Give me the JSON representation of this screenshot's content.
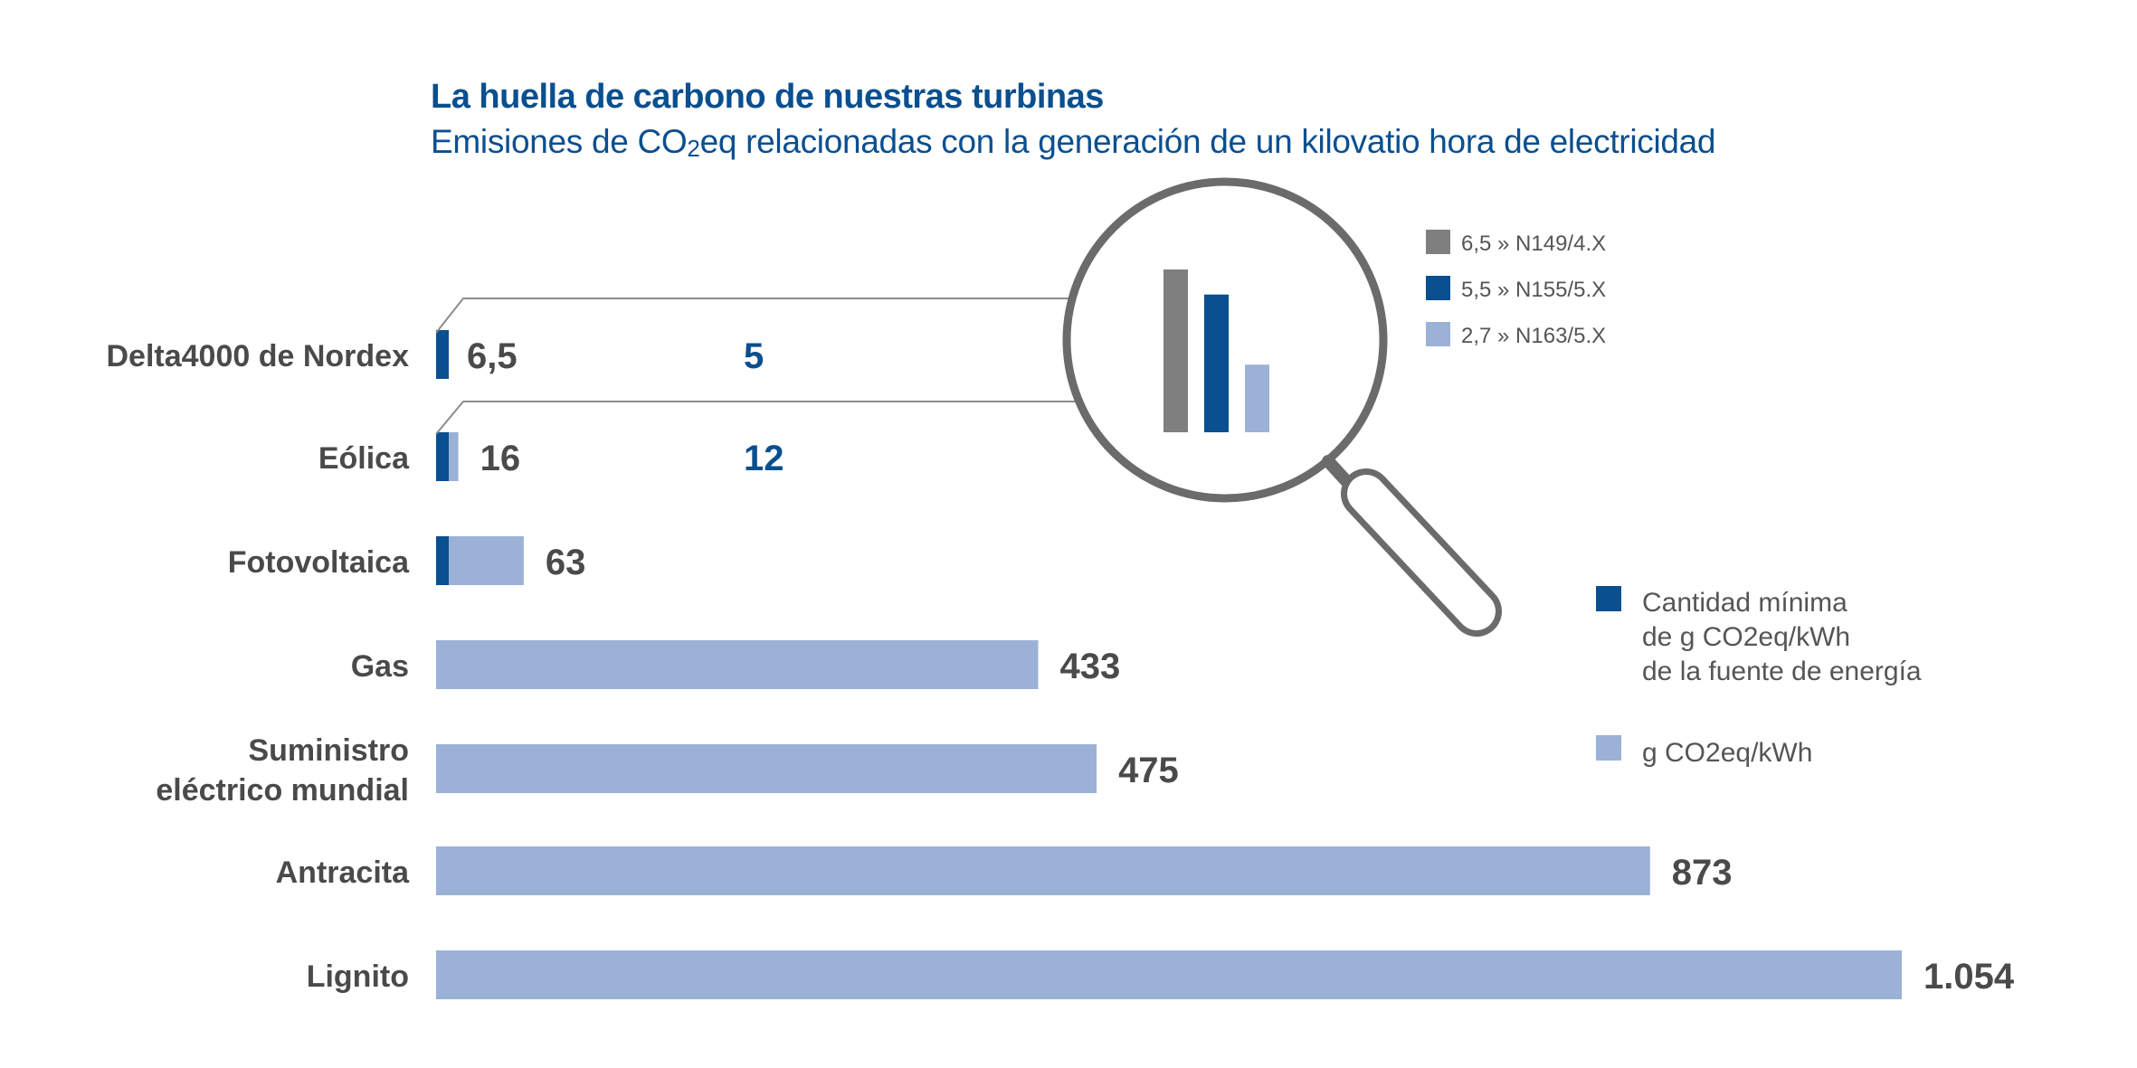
{
  "chart_data": {
    "type": "bar",
    "orientation": "horizontal",
    "title": "La huella de carbono de nuestras turbinas",
    "subtitle": {
      "before": "Emisiones de CO",
      "sub": "2",
      "after": "eq relacionadas con la generación de un kilovatio hora de electricidad"
    },
    "categories": [
      "Delta4000 de Nordex",
      "Eólica",
      "Fotovoltaica",
      "Gas",
      "Suministro eléctrico mundial",
      "Antracita",
      "Lignito"
    ],
    "category_lines": [
      [
        "Delta4000 de Nordex"
      ],
      [
        "Eólica"
      ],
      [
        "Fotovoltaica"
      ],
      [
        "Gas"
      ],
      [
        "Suministro",
        "eléctrico mundial"
      ],
      [
        "Antracita"
      ],
      [
        "Lignito"
      ]
    ],
    "series": [
      {
        "key": "total",
        "color": "#9bb1d6",
        "values": [
          6.5,
          16,
          63,
          433,
          475,
          873,
          1054
        ]
      },
      {
        "key": "min",
        "color": "#0a4f8f",
        "values": [
          6.5,
          7,
          9,
          null,
          null,
          null,
          null
        ]
      }
    ],
    "value_labels": [
      "6,5",
      "16",
      "63",
      "433",
      "475",
      "873",
      "1.054"
    ],
    "secondary_labels": [
      "5",
      "12",
      "",
      "",
      "",
      "",
      ""
    ],
    "xlim": [
      0,
      1054
    ],
    "grid": false,
    "legend": {
      "position": "right",
      "items": [
        {
          "lines": [
            "Cantidad mínima",
            "de g CO2eq/kWh",
            "de la fuente de energía"
          ],
          "color": "#0a4f8f"
        },
        {
          "lines": [
            "g CO2eq/kWh"
          ],
          "color": "#9bb1d6"
        }
      ]
    },
    "inset": {
      "type": "bar",
      "categories": [
        "N149/4.X",
        "N155/5.X",
        "N163/5.X"
      ],
      "values": [
        6.5,
        5.5,
        2.7
      ],
      "value_labels": [
        "6,5",
        "5,5",
        "2,7"
      ],
      "legend_texts": [
        "6,5 » N149/4.X",
        "5,5 » N155/5.X",
        "2,7 » N163/5.X"
      ],
      "colors": [
        "#7f7f7f",
        "#0a4f8f",
        "#9bb1d6"
      ]
    },
    "colors": {
      "title": "#0a4f8f",
      "label": "#4a4a4a",
      "lens": "#6b6b6b",
      "connector": "#8c8c8c"
    }
  }
}
